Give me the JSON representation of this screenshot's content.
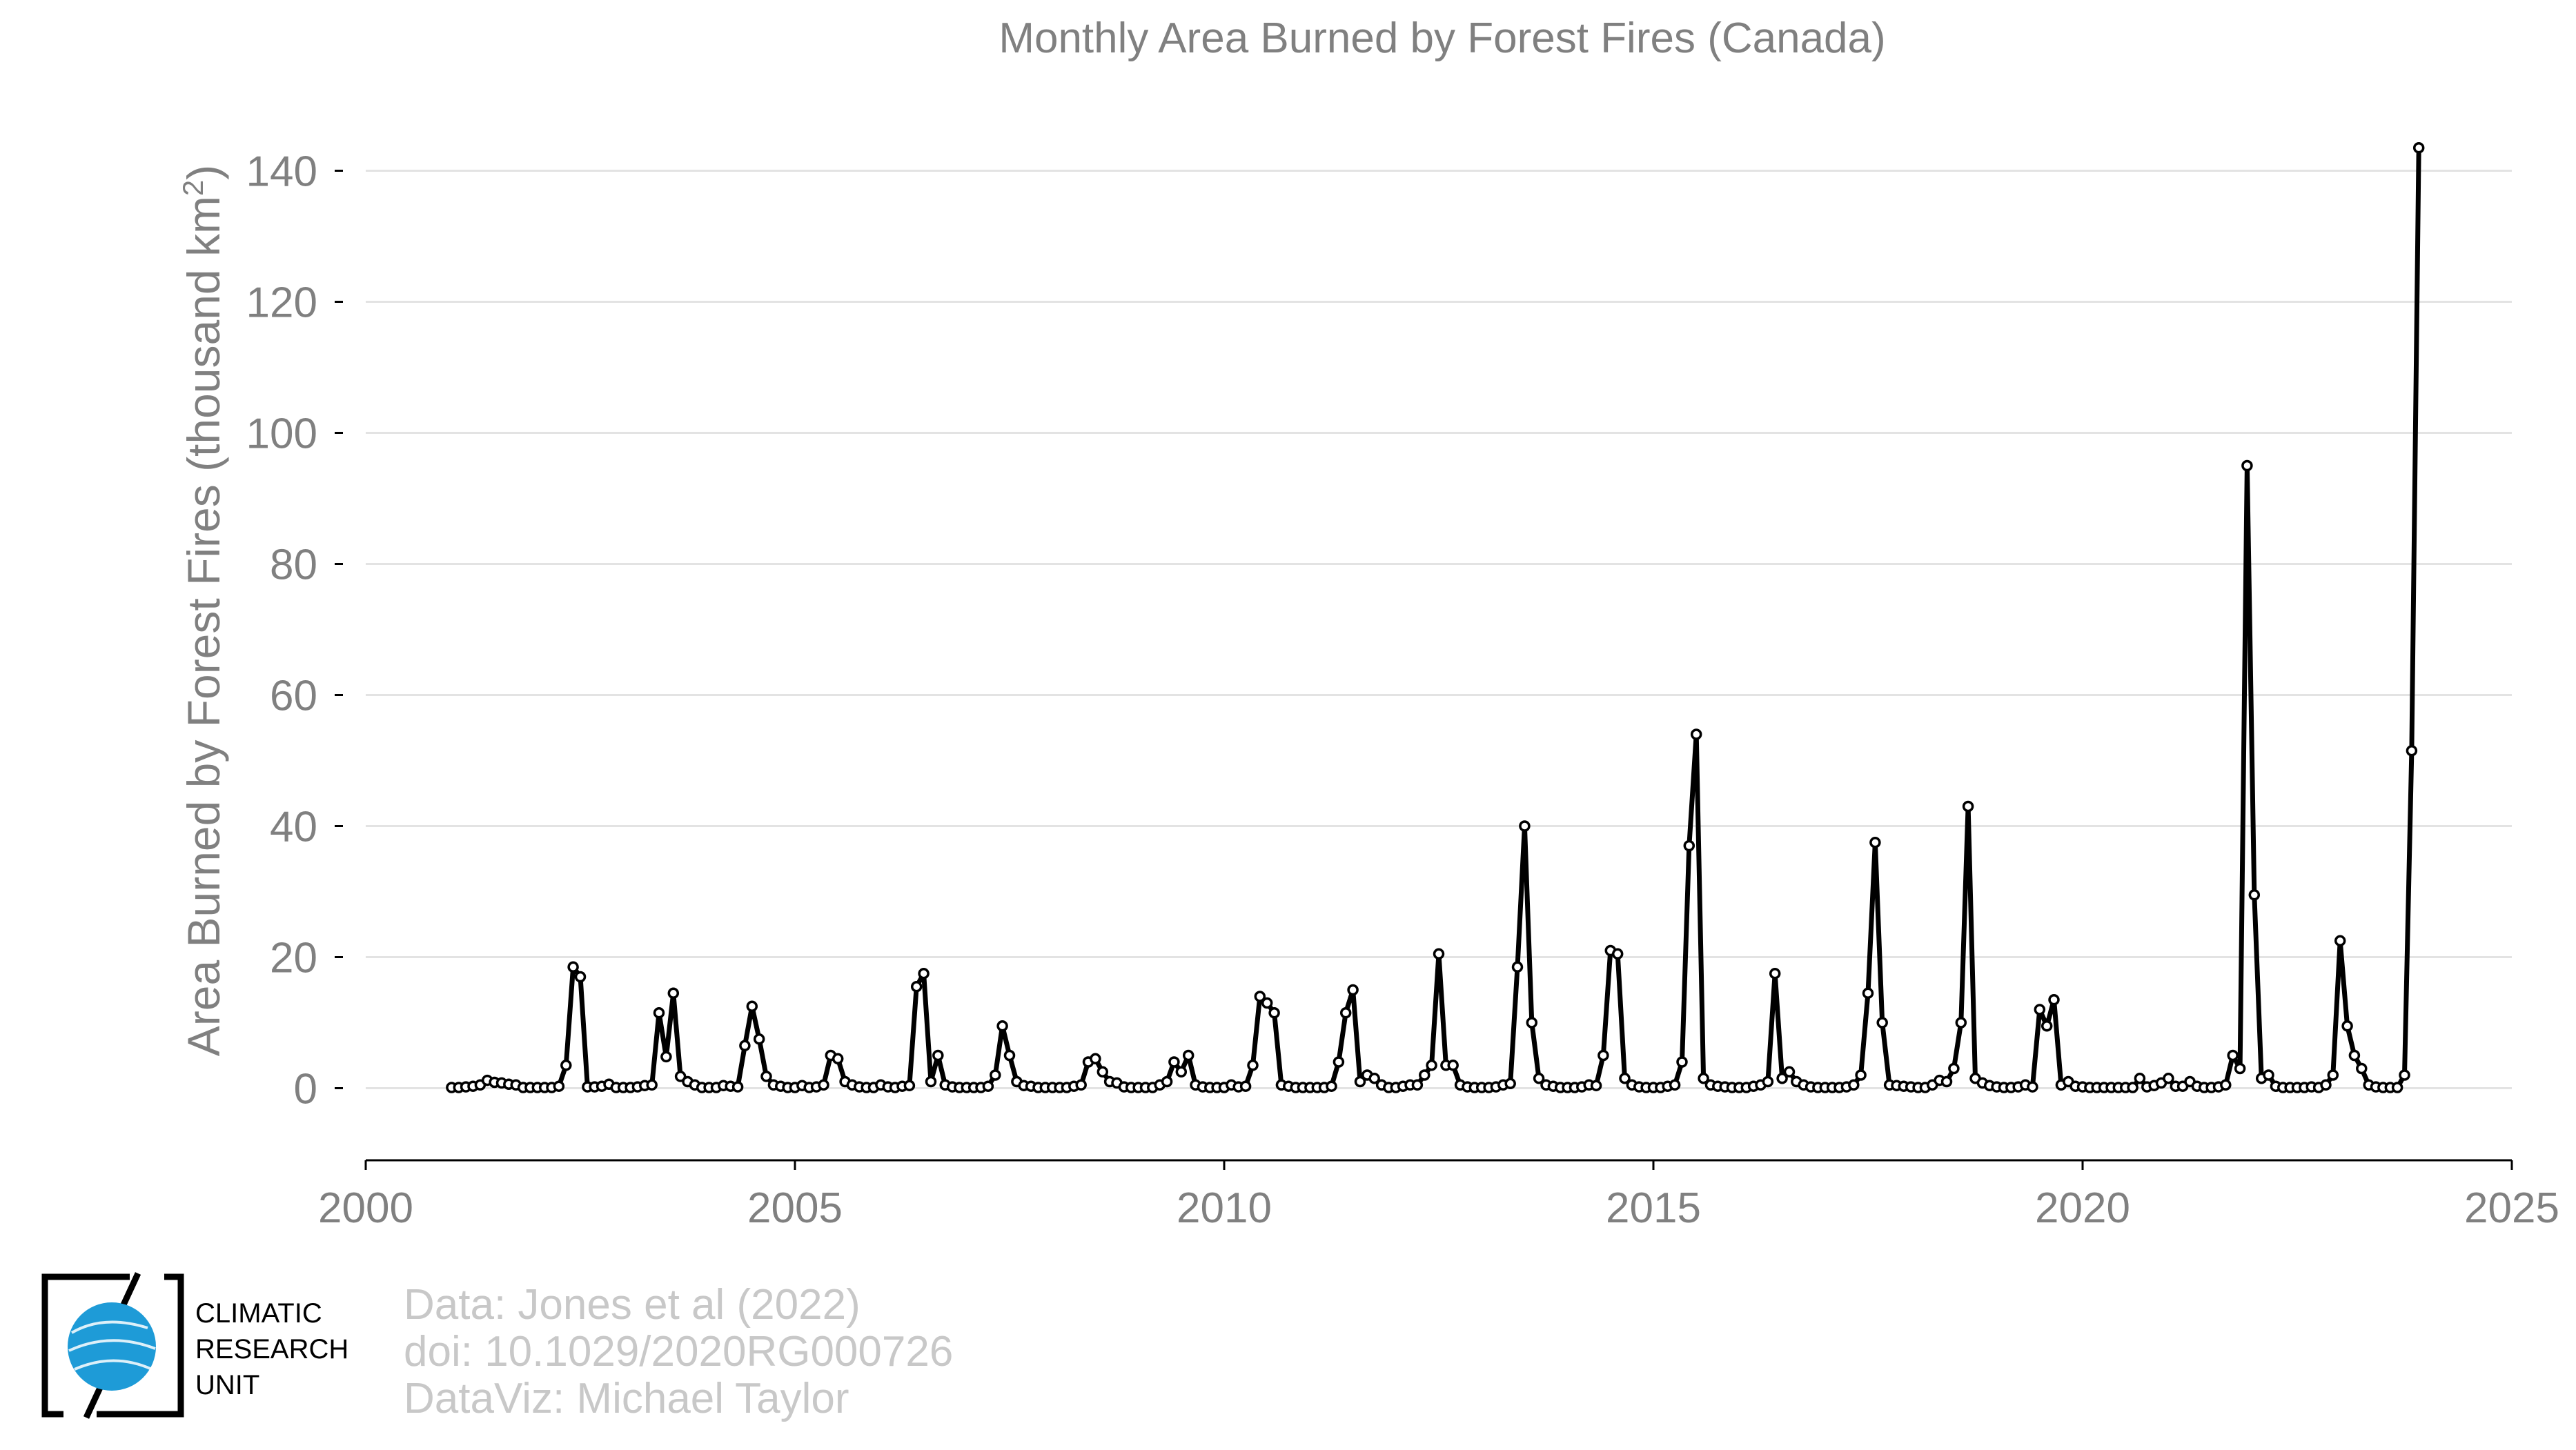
{
  "chart_data": {
    "type": "line",
    "title": "Monthly Area Burned by Forest Fires (Canada)",
    "xlabel": "",
    "ylabel": "Area Burned by Forest Fires (thousand km",
    "ylabel_sup": "2",
    "ylabel_end": ")",
    "xlim": [
      2000,
      2025
    ],
    "ylim": [
      -11,
      145
    ],
    "xticks": [
      2000,
      2005,
      2010,
      2015,
      2020,
      2025
    ],
    "yticks": [
      0,
      20,
      40,
      60,
      80,
      100,
      120,
      140
    ],
    "grid": "horizontal",
    "line_color": "#000000",
    "marker_fill": "#ffffff",
    "series": [
      {
        "x_start": 2001.0,
        "x_step_months": 1,
        "values": [
          0.1,
          0.1,
          0.2,
          0.3,
          0.5,
          1.2,
          0.9,
          0.8,
          0.6,
          0.5,
          0.1,
          0.1,
          0.1,
          0.1,
          0.1,
          0.3,
          3.5,
          18.5,
          17.0,
          0.2,
          0.2,
          0.3,
          0.6,
          0.1,
          0.1,
          0.1,
          0.2,
          0.4,
          0.5,
          11.5,
          4.8,
          14.5,
          1.8,
          1.0,
          0.5,
          0.1,
          0.1,
          0.1,
          0.4,
          0.3,
          0.2,
          6.5,
          12.5,
          7.5,
          1.8,
          0.5,
          0.3,
          0.1,
          0.1,
          0.4,
          0.1,
          0.2,
          0.5,
          5.0,
          4.5,
          1.0,
          0.5,
          0.2,
          0.1,
          0.1,
          0.5,
          0.2,
          0.1,
          0.3,
          0.4,
          15.5,
          17.5,
          1.0,
          5.0,
          0.5,
          0.2,
          0.1,
          0.1,
          0.1,
          0.1,
          0.3,
          2.0,
          9.5,
          5.0,
          1.0,
          0.4,
          0.3,
          0.1,
          0.1,
          0.1,
          0.1,
          0.1,
          0.3,
          0.5,
          4.0,
          4.5,
          2.5,
          1.0,
          0.8,
          0.2,
          0.1,
          0.1,
          0.1,
          0.1,
          0.5,
          1.0,
          4.0,
          2.5,
          5.0,
          0.5,
          0.2,
          0.1,
          0.1,
          0.1,
          0.5,
          0.2,
          0.3,
          3.5,
          14.0,
          13.0,
          11.5,
          0.5,
          0.3,
          0.1,
          0.1,
          0.1,
          0.1,
          0.1,
          0.3,
          4.0,
          11.5,
          15.0,
          1.0,
          2.0,
          1.5,
          0.5,
          0.1,
          0.1,
          0.3,
          0.5,
          0.5,
          2.0,
          3.5,
          20.5,
          3.5,
          3.5,
          0.5,
          0.2,
          0.1,
          0.1,
          0.1,
          0.2,
          0.5,
          0.7,
          18.5,
          40.0,
          10.0,
          1.5,
          0.5,
          0.3,
          0.1,
          0.1,
          0.1,
          0.2,
          0.5,
          0.4,
          5.0,
          21.0,
          20.5,
          1.5,
          0.5,
          0.2,
          0.1,
          0.1,
          0.1,
          0.3,
          0.5,
          4.0,
          37.0,
          54.0,
          1.5,
          0.5,
          0.3,
          0.2,
          0.1,
          0.1,
          0.1,
          0.3,
          0.5,
          1.0,
          17.5,
          1.5,
          2.5,
          1.0,
          0.5,
          0.2,
          0.1,
          0.1,
          0.1,
          0.1,
          0.2,
          0.5,
          2.0,
          14.5,
          37.5,
          10.0,
          0.5,
          0.4,
          0.3,
          0.2,
          0.1,
          0.1,
          0.5,
          1.2,
          1.0,
          3.0,
          10.0,
          43.0,
          1.5,
          0.8,
          0.4,
          0.2,
          0.1,
          0.1,
          0.2,
          0.5,
          0.2,
          12.0,
          9.5,
          13.5,
          0.5,
          1.0,
          0.3,
          0.2,
          0.1,
          0.1,
          0.1,
          0.1,
          0.1,
          0.1,
          0.1,
          1.5,
          0.2,
          0.4,
          0.8,
          1.5,
          0.3,
          0.3,
          1.0,
          0.3,
          0.1,
          0.1,
          0.2,
          0.5,
          5.0,
          3.0,
          95.0,
          29.5,
          1.5,
          2.0,
          0.3,
          0.1,
          0.1,
          0.1,
          0.1,
          0.2,
          0.1,
          0.5,
          2.0,
          22.5,
          9.5,
          5.0,
          3.0,
          0.5,
          0.2,
          0.1,
          0.1,
          0.1,
          2.0,
          51.5,
          143.5
        ]
      }
    ]
  },
  "logo": {
    "line1": "CLIMATIC",
    "line2": "RESEARCH",
    "line3": "UNIT",
    "globe_color": "#1e9bd7"
  },
  "credits": {
    "line1": "Data: Jones et al (2022)",
    "line2": "doi: 10.1029/2020RG000726",
    "line3": "DataViz: Michael Taylor"
  }
}
